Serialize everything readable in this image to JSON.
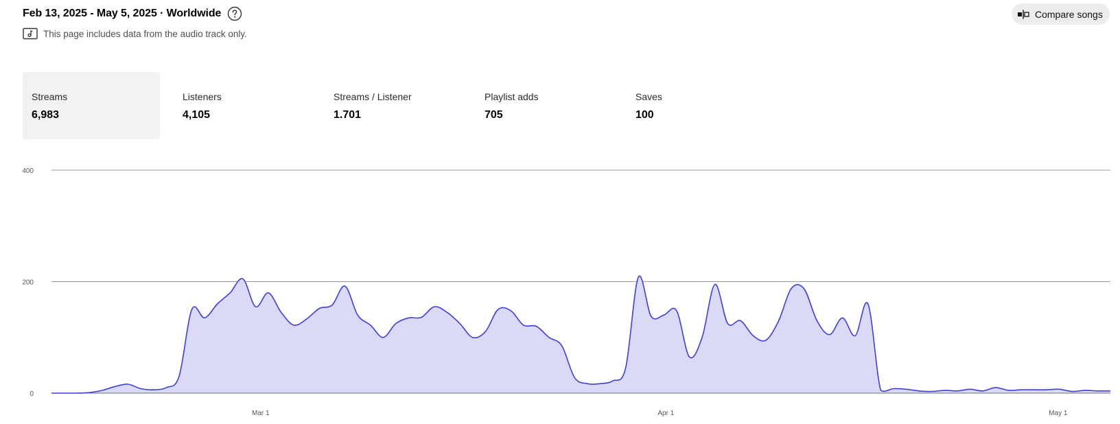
{
  "header": {
    "title": "Feb 13, 2025 - May 5, 2025 · Worldwide",
    "note": "This page includes data from the audio track only.",
    "compare_label": "Compare songs"
  },
  "metrics": [
    {
      "label": "Streams",
      "value": "6,983",
      "active": true
    },
    {
      "label": "Listeners",
      "value": "4,105",
      "active": false
    },
    {
      "label": "Streams / Listener",
      "value": "1.701",
      "active": false
    },
    {
      "label": "Playlist adds",
      "value": "705",
      "active": false
    },
    {
      "label": "Saves",
      "value": "100",
      "active": false
    }
  ],
  "colors": {
    "line": "#3d3de0",
    "fill": "#dadaf6",
    "grid": "#9a9a9a"
  },
  "chart_data": {
    "type": "area",
    "ylim": [
      0,
      400
    ],
    "yticks": [
      "0",
      "200",
      "400"
    ],
    "xticks": [
      {
        "label": "Mar 1",
        "date": "2025-03-01"
      },
      {
        "label": "Apr 1",
        "date": "2025-04-01"
      },
      {
        "label": "May 1",
        "date": "2025-05-01"
      }
    ],
    "x_start": "2025-02-13",
    "x_end": "2025-05-05",
    "series": [
      {
        "name": "",
        "values": [
          0,
          0,
          0,
          1,
          5,
          12,
          16,
          8,
          6,
          10,
          30,
          150,
          135,
          160,
          180,
          205,
          155,
          180,
          145,
          122,
          133,
          152,
          158,
          192,
          140,
          122,
          100,
          125,
          135,
          136,
          155,
          145,
          125,
          100,
          110,
          150,
          148,
          122,
          120,
          100,
          85,
          28,
          17,
          17,
          22,
          45,
          208,
          138,
          140,
          148,
          65,
          100,
          195,
          125,
          130,
          103,
          95,
          130,
          188,
          187,
          130,
          105,
          135,
          103,
          160,
          5,
          8,
          7,
          4,
          3,
          5,
          4,
          7,
          4,
          10,
          5,
          6,
          6,
          6,
          7,
          3,
          5,
          4,
          4
        ]
      }
    ]
  }
}
